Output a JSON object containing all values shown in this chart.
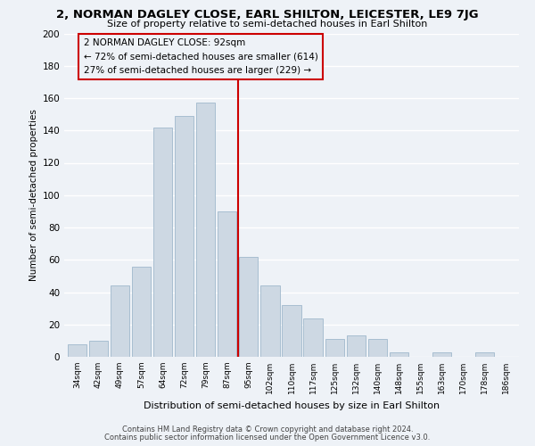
{
  "title": "2, NORMAN DAGLEY CLOSE, EARL SHILTON, LEICESTER, LE9 7JG",
  "subtitle": "Size of property relative to semi-detached houses in Earl Shilton",
  "xlabel": "Distribution of semi-detached houses by size in Earl Shilton",
  "ylabel": "Number of semi-detached properties",
  "bar_labels": [
    "34sqm",
    "42sqm",
    "49sqm",
    "57sqm",
    "64sqm",
    "72sqm",
    "79sqm",
    "87sqm",
    "95sqm",
    "102sqm",
    "110sqm",
    "117sqm",
    "125sqm",
    "132sqm",
    "140sqm",
    "148sqm",
    "155sqm",
    "163sqm",
    "170sqm",
    "178sqm",
    "186sqm"
  ],
  "bar_values": [
    8,
    10,
    44,
    56,
    142,
    149,
    157,
    90,
    62,
    44,
    32,
    24,
    11,
    13,
    11,
    3,
    0,
    3,
    0,
    3,
    0
  ],
  "bar_color": "#cdd8e3",
  "bar_edge_color": "#9fb8cc",
  "annotation_title": "2 NORMAN DAGLEY CLOSE: 92sqm",
  "annotation_line1": "← 72% of semi-detached houses are smaller (614)",
  "annotation_line2": "27% of semi-detached houses are larger (229) →",
  "vline_color": "#cc0000",
  "annotation_box_edge": "#cc0000",
  "ylim": [
    0,
    200
  ],
  "yticks": [
    0,
    20,
    40,
    60,
    80,
    100,
    120,
    140,
    160,
    180,
    200
  ],
  "footer1": "Contains HM Land Registry data © Crown copyright and database right 2024.",
  "footer2": "Contains public sector information licensed under the Open Government Licence v3.0.",
  "bg_color": "#eef2f7",
  "grid_color": "#ffffff"
}
